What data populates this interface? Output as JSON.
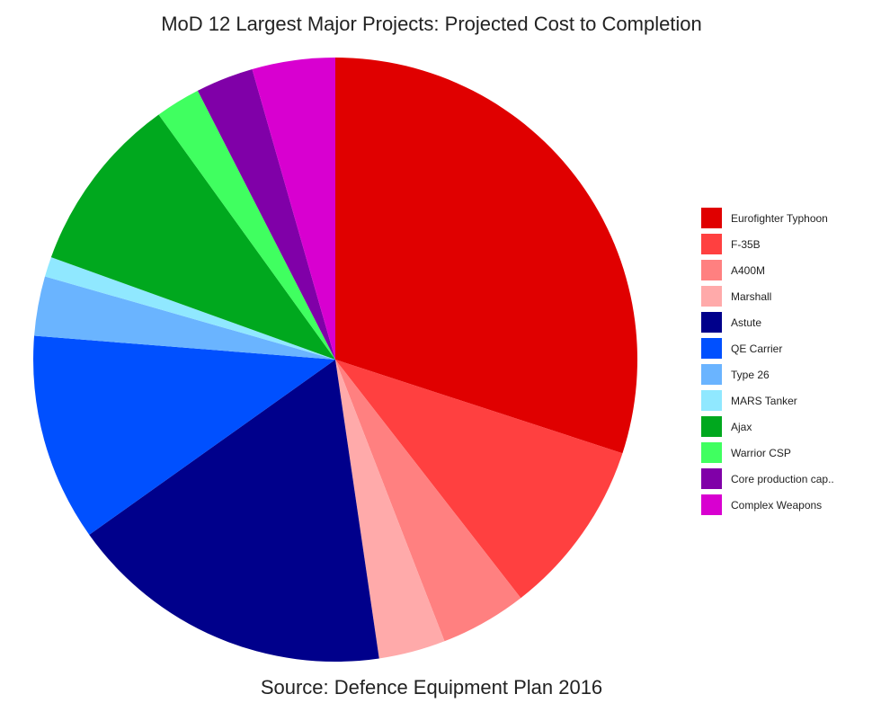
{
  "chart_data": {
    "type": "pie",
    "title": "MoD 12 Largest Major Projects: Projected Cost to Completion",
    "caption": "Source: Defence Equipment Plan 2016",
    "legend_position": "right",
    "start_angle_deg": 0,
    "direction": "clockwise",
    "slices": [
      {
        "label": "Eurofighter Typhoon",
        "value": 31.1,
        "color": "#e00000"
      },
      {
        "label": "F-35B",
        "value": 9.8,
        "color": "#ff4040"
      },
      {
        "label": "A400M",
        "value": 4.8,
        "color": "#ff8080"
      },
      {
        "label": "Marshall",
        "value": 3.7,
        "color": "#ffaaaa"
      },
      {
        "label": "Astute",
        "value": 18.1,
        "color": "#00008b"
      },
      {
        "label": "QE Carrier",
        "value": 11.5,
        "color": "#0050ff"
      },
      {
        "label": "Type 26",
        "value": 3.3,
        "color": "#6ab4ff"
      },
      {
        "label": "MARS Tanker",
        "value": 1.1,
        "color": "#90e8ff"
      },
      {
        "label": "Ajax",
        "value": 9.9,
        "color": "#00a81e"
      },
      {
        "label": "Warrior CSP",
        "value": 2.5,
        "color": "#40ff60"
      },
      {
        "label": "Core production cap..",
        "value": 3.2,
        "color": "#8000a8"
      },
      {
        "label": "Complex Weapons",
        "value": 4.6,
        "color": "#d800d0"
      }
    ]
  }
}
